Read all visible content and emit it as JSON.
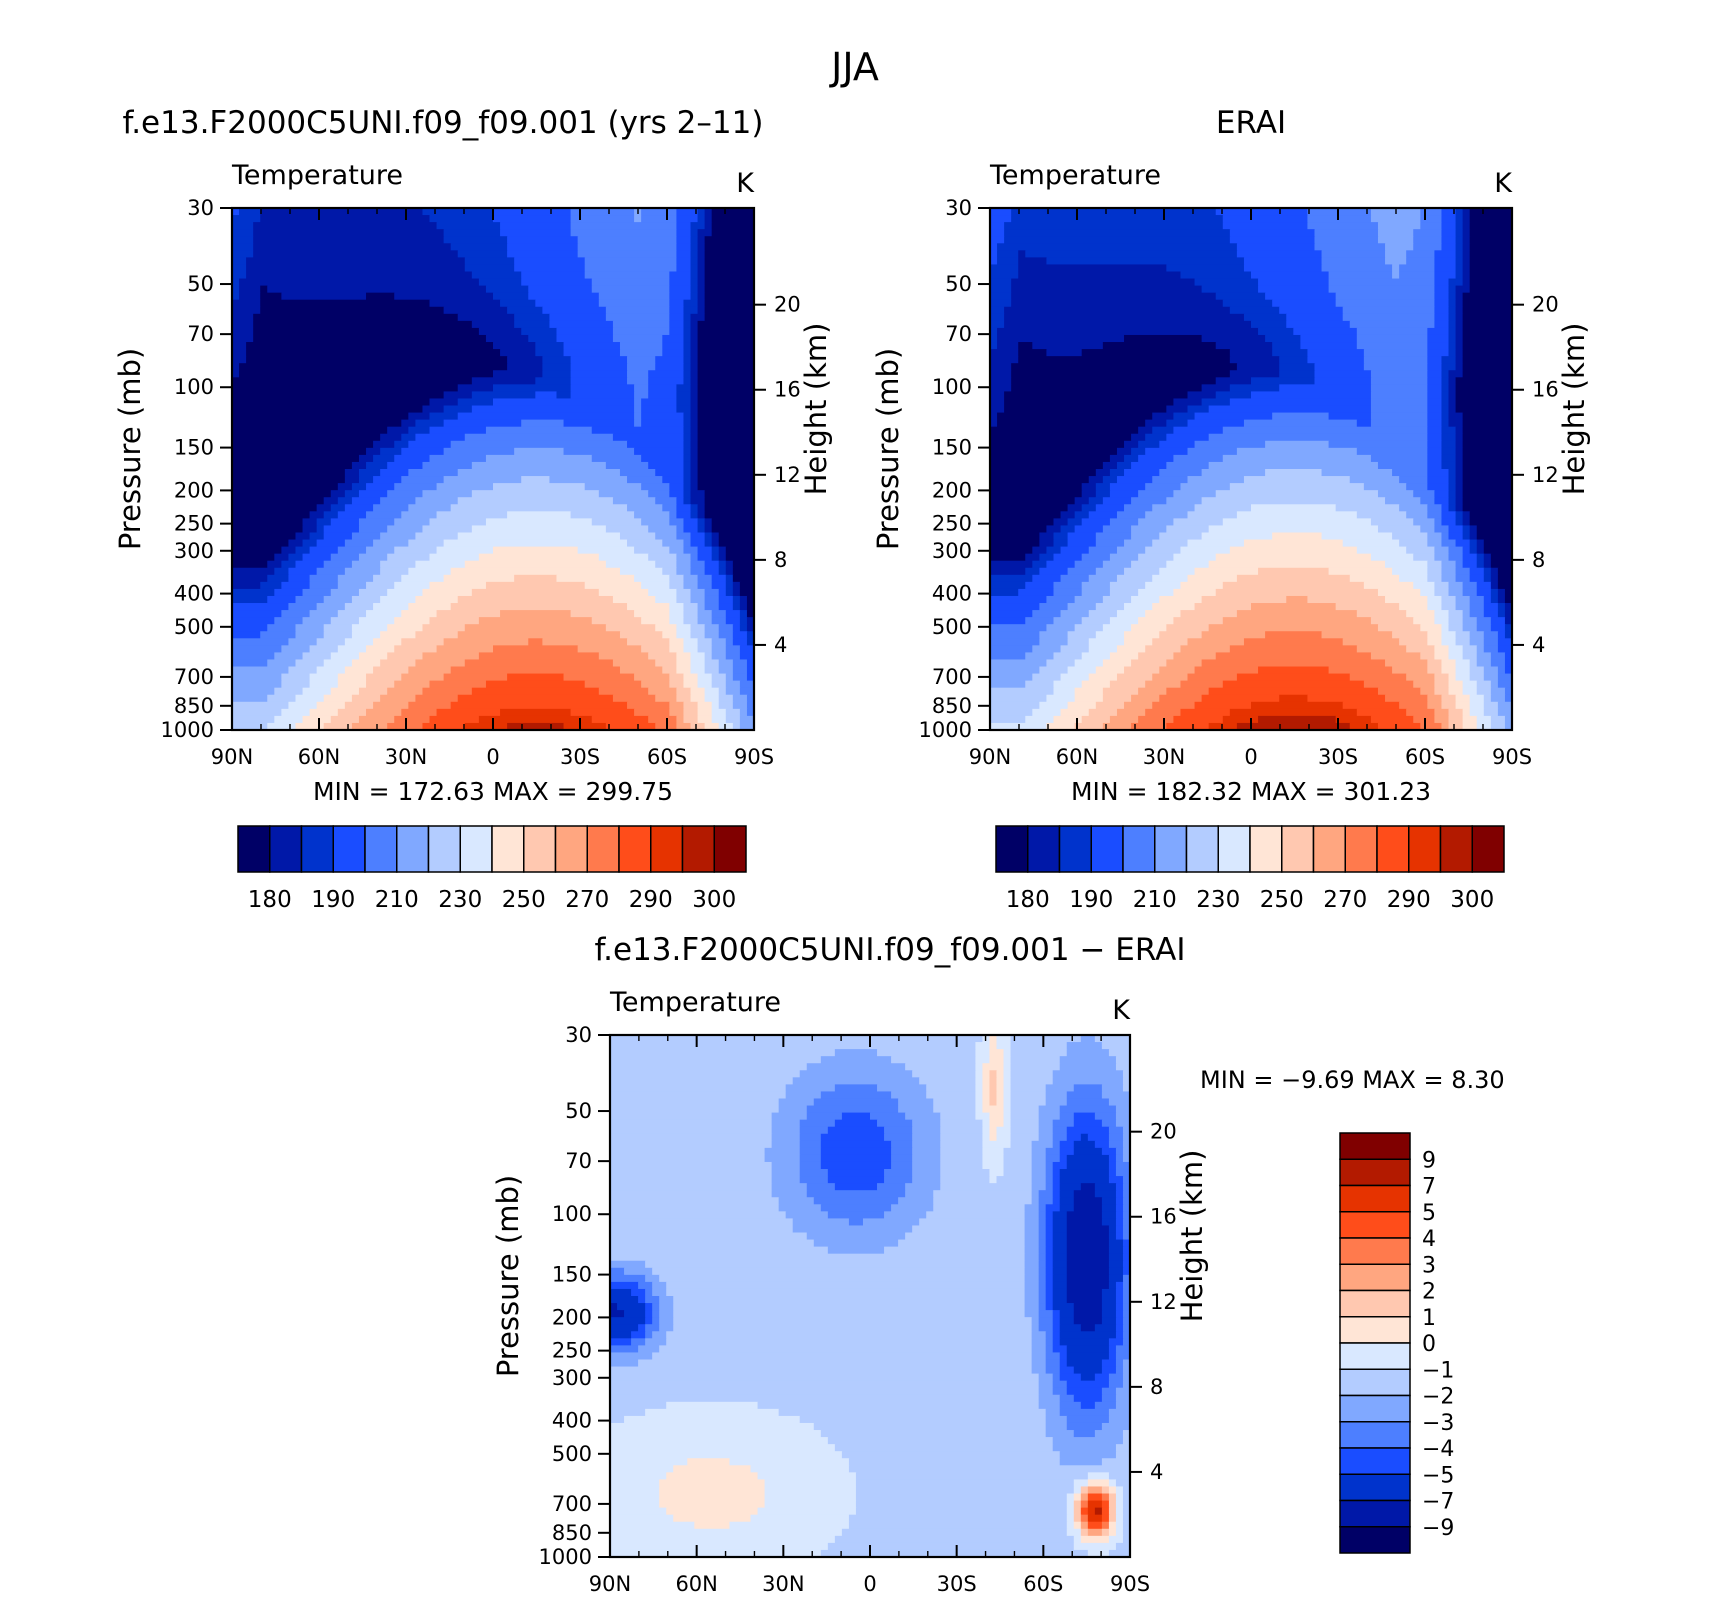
{
  "figure": {
    "title": "JJA"
  },
  "chart_data": [
    {
      "type": "contour",
      "id": "model",
      "title": "f.e13.F2000C5UNI.f09_f09.001 (yrs 2–11)",
      "left_label": "Temperature",
      "right_label": "K",
      "ylabel": "Pressure (mb)",
      "ylabel_right": "Height (km)",
      "x_ticks": [
        "90N",
        "60N",
        "30N",
        "0",
        "30S",
        "60S",
        "90S"
      ],
      "y_ticks": [
        "30",
        "50",
        "70",
        "100",
        "150",
        "200",
        "250",
        "300",
        "400",
        "500",
        "700",
        "850",
        "1000"
      ],
      "y_ticks_right": [
        "20",
        "16",
        "12",
        "8",
        "4"
      ],
      "stats": "MIN =  172.63   MAX =  299.75",
      "colorbar_labels": [
        "180",
        "190",
        "210",
        "230",
        "250",
        "270",
        "290",
        "300"
      ],
      "min": 172.63,
      "max": 299.75
    },
    {
      "type": "contour",
      "id": "obs",
      "title": "ERAI",
      "left_label": "Temperature",
      "right_label": "K",
      "ylabel": "Pressure (mb)",
      "ylabel_right": "Height (km)",
      "x_ticks": [
        "90N",
        "60N",
        "30N",
        "0",
        "30S",
        "60S",
        "90S"
      ],
      "y_ticks": [
        "30",
        "50",
        "70",
        "100",
        "150",
        "200",
        "250",
        "300",
        "400",
        "500",
        "700",
        "850",
        "1000"
      ],
      "y_ticks_right": [
        "20",
        "16",
        "12",
        "8",
        "4"
      ],
      "stats": "MIN =  182.32   MAX =  301.23",
      "colorbar_labels": [
        "180",
        "190",
        "210",
        "230",
        "250",
        "270",
        "290",
        "300"
      ],
      "min": 182.32,
      "max": 301.23
    },
    {
      "type": "contour",
      "id": "diff",
      "title": "f.e13.F2000C5UNI.f09_f09.001 − ERAI",
      "left_label": "Temperature",
      "right_label": "K",
      "ylabel": "Pressure (mb)",
      "ylabel_right": "Height (km)",
      "x_ticks": [
        "90N",
        "60N",
        "30N",
        "0",
        "30S",
        "60S",
        "90S"
      ],
      "y_ticks": [
        "30",
        "50",
        "70",
        "100",
        "150",
        "200",
        "250",
        "300",
        "400",
        "500",
        "700",
        "850",
        "1000"
      ],
      "y_ticks_right": [
        "20",
        "16",
        "12",
        "8",
        "4"
      ],
      "stats": "MIN =   −9.69   MAX =    8.30",
      "colorbar_labels": [
        "9",
        "7",
        "5",
        "4",
        "3",
        "2",
        "1",
        "0",
        "−1",
        "−2",
        "−3",
        "−4",
        "−5",
        "−7",
        "−9"
      ],
      "min": -9.69,
      "max": 8.3
    }
  ],
  "colors": {
    "abs_scale": [
      "#000066",
      "#0018a8",
      "#0033cc",
      "#1a4dff",
      "#4d7fff",
      "#80a8ff",
      "#b3ccff",
      "#d9e8ff",
      "#ffe5d6",
      "#ffc8b0",
      "#ffa680",
      "#ff7a4d",
      "#ff4d1a",
      "#e63300",
      "#b31a00",
      "#800000"
    ],
    "diff_scale": [
      "#000066",
      "#0018a8",
      "#0033cc",
      "#1a4dff",
      "#4d7fff",
      "#80a8ff",
      "#b3ccff",
      "#d9e8ff",
      "#ffe5d6",
      "#ffc8b0",
      "#ffa680",
      "#ff7a4d",
      "#ff4d1a",
      "#e63300",
      "#b31a00",
      "#800000"
    ]
  }
}
